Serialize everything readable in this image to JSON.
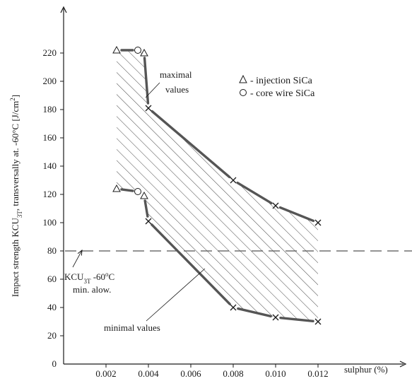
{
  "chart_data": {
    "type": "line",
    "ylabel_main": "Impact strength KCU",
    "ylabel_sub": "3T",
    "ylabel_rest": ", transversally at. -60°C [J/cm",
    "ylabel_sup": "2",
    "ylabel_end": "]",
    "xlabel": "sulphur (%)",
    "xlim": [
      0,
      0.0125
    ],
    "ylim": [
      0,
      230
    ],
    "x_ticks": [
      0.002,
      0.004,
      0.006,
      0.008,
      0.01,
      0.012
    ],
    "x_tick_labels": [
      "0.002",
      "0.004",
      "0.006",
      "0.008",
      "0.010",
      "0.012"
    ],
    "y_ticks": [
      0,
      20,
      40,
      60,
      80,
      100,
      120,
      140,
      160,
      180,
      200,
      220
    ],
    "y_tick_labels": [
      "0",
      "20",
      "40",
      "60",
      "80",
      "100",
      "120",
      "140",
      "160",
      "180",
      "200",
      "220"
    ],
    "series": [
      {
        "name": "maximal values",
        "points": [
          {
            "x": 0.0025,
            "y": 222,
            "marker": "triangle"
          },
          {
            "x": 0.0035,
            "y": 222,
            "marker": "circle"
          },
          {
            "x": 0.0038,
            "y": 220,
            "marker": "triangle"
          },
          {
            "x": 0.004,
            "y": 181,
            "marker": "cross"
          },
          {
            "x": 0.008,
            "y": 130,
            "marker": "cross"
          },
          {
            "x": 0.01,
            "y": 112,
            "marker": "cross"
          },
          {
            "x": 0.012,
            "y": 100,
            "marker": "cross"
          }
        ]
      },
      {
        "name": "minimal values",
        "points": [
          {
            "x": 0.0025,
            "y": 124,
            "marker": "triangle"
          },
          {
            "x": 0.0035,
            "y": 122,
            "marker": "circle"
          },
          {
            "x": 0.0038,
            "y": 119,
            "marker": "triangle"
          },
          {
            "x": 0.004,
            "y": 101,
            "marker": "cross"
          },
          {
            "x": 0.008,
            "y": 40,
            "marker": "cross"
          },
          {
            "x": 0.01,
            "y": 33,
            "marker": "cross"
          },
          {
            "x": 0.012,
            "y": 30,
            "marker": "cross"
          }
        ]
      }
    ],
    "threshold": {
      "y": 80,
      "style": "dashed"
    },
    "hatched_band": true,
    "annotations": {
      "max_label_line1": "maximal",
      "max_label_line2": "values",
      "min_label": "minimal values",
      "allow_line1_main": "KCU",
      "allow_line1_sub": "3T",
      "allow_line1_rest": " -60",
      "allow_line1_sup": "o",
      "allow_line1_end": "C",
      "allow_line2": "min. alow."
    },
    "legend": {
      "position": "top-right",
      "items": [
        {
          "symbol": "triangle",
          "label": "- injection SiCa"
        },
        {
          "symbol": "circle",
          "label": "- core wire SiCa"
        }
      ]
    },
    "colors": {
      "line": "#555555",
      "ink": "#1a1a1a",
      "hatch": "#333333"
    }
  }
}
